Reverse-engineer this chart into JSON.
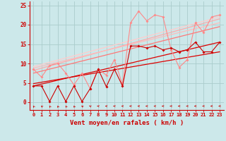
{
  "background_color": "#cce8ea",
  "grid_color": "#aacccc",
  "xlabel": "Vent moyen/en rafales ( km/h )",
  "xlim": [
    -0.5,
    23.5
  ],
  "ylim": [
    -2,
    26
  ],
  "yticks": [
    0,
    5,
    10,
    15,
    20,
    25
  ],
  "xticks": [
    0,
    1,
    2,
    3,
    4,
    5,
    6,
    7,
    8,
    9,
    10,
    11,
    12,
    13,
    14,
    15,
    16,
    17,
    18,
    19,
    20,
    21,
    22,
    23
  ],
  "trend_lines": [
    {
      "x0": 0,
      "y0": 4.2,
      "x1": 23,
      "y1": 15.5,
      "color": "#dd0000",
      "lw": 0.9
    },
    {
      "x0": 0,
      "y0": 4.8,
      "x1": 23,
      "y1": 13.0,
      "color": "#dd0000",
      "lw": 0.9
    },
    {
      "x0": 0,
      "y0": 7.5,
      "x1": 23,
      "y1": 19.5,
      "color": "#ff7777",
      "lw": 0.9
    },
    {
      "x0": 0,
      "y0": 8.2,
      "x1": 23,
      "y1": 21.5,
      "color": "#ffaaaa",
      "lw": 0.9
    },
    {
      "x0": 0,
      "y0": 8.8,
      "x1": 23,
      "y1": 20.5,
      "color": "#ffbbbb",
      "lw": 0.9
    },
    {
      "x0": 0,
      "y0": 9.2,
      "x1": 23,
      "y1": 22.0,
      "color": "#ffcccc",
      "lw": 0.9
    }
  ],
  "dark_line_x": [
    0,
    1,
    2,
    3,
    4,
    5,
    6,
    7,
    8,
    9,
    10,
    11,
    12,
    13,
    14,
    15,
    16,
    17,
    18,
    19,
    20,
    21,
    22,
    23
  ],
  "dark_line_y": [
    4.2,
    4.2,
    0.2,
    4.2,
    0.2,
    4.2,
    0.2,
    3.5,
    8.5,
    4.0,
    8.5,
    4.2,
    14.5,
    14.5,
    14.0,
    14.5,
    13.5,
    14.0,
    13.0,
    13.5,
    15.5,
    13.0,
    13.0,
    15.5
  ],
  "pink_line_x": [
    0,
    1,
    2,
    3,
    4,
    5,
    6,
    7,
    8,
    9,
    10,
    11,
    12,
    13,
    14,
    15,
    16,
    17,
    18,
    19,
    20,
    21,
    22,
    23
  ],
  "pink_line_y": [
    8.5,
    6.5,
    9.5,
    10.0,
    7.5,
    4.5,
    7.5,
    3.5,
    8.5,
    7.0,
    11.0,
    4.5,
    20.5,
    23.5,
    21.0,
    22.5,
    22.0,
    13.5,
    9.0,
    11.0,
    20.5,
    18.0,
    22.0,
    22.5
  ],
  "dark_line_color": "#cc0000",
  "pink_line_color": "#ff8888",
  "marker_size": 2.0,
  "xlabel_color": "#cc0000",
  "tick_color": "#cc0000",
  "xlabel_fontsize": 6.5,
  "tick_fontsize": 5.0,
  "arrow_angles": [
    200,
    210,
    200,
    195,
    200,
    200,
    220,
    230,
    250,
    260,
    260,
    265,
    265,
    265,
    265,
    265,
    268,
    270,
    272,
    275,
    278,
    280,
    282,
    285
  ]
}
